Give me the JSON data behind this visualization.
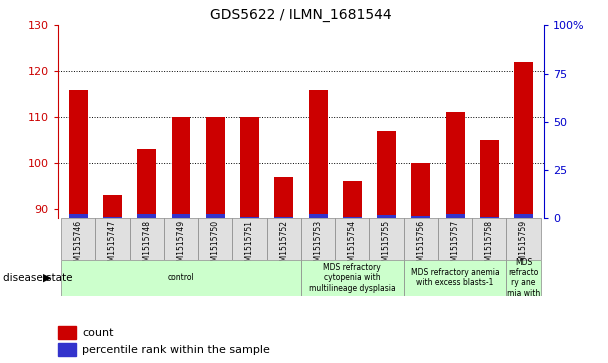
{
  "title": "GDS5622 / ILMN_1681544",
  "samples": [
    "GSM1515746",
    "GSM1515747",
    "GSM1515748",
    "GSM1515749",
    "GSM1515750",
    "GSM1515751",
    "GSM1515752",
    "GSM1515753",
    "GSM1515754",
    "GSM1515755",
    "GSM1515756",
    "GSM1515757",
    "GSM1515758",
    "GSM1515759"
  ],
  "count_values": [
    116,
    93,
    103,
    110,
    110,
    110,
    97,
    116,
    96,
    107,
    100,
    111,
    105,
    122
  ],
  "percentile_values": [
    5,
    1,
    5,
    5,
    5,
    1,
    1,
    5,
    1,
    4,
    2,
    5,
    1,
    5
  ],
  "ylim_left": [
    88,
    130
  ],
  "ylim_right": [
    0,
    100
  ],
  "yticks_left": [
    90,
    100,
    110,
    120,
    130
  ],
  "yticks_right": [
    0,
    25,
    50,
    75,
    100
  ],
  "ytick_labels_right": [
    "0",
    "25",
    "50",
    "75",
    "100%"
  ],
  "bar_color_count": "#cc0000",
  "bar_color_pct": "#3333cc",
  "bar_bottom": 88,
  "bar_width": 0.55,
  "groups": [
    {
      "label": "control",
      "start": 0,
      "end": 7,
      "color": "#ccffcc"
    },
    {
      "label": "MDS refractory\ncytopenia with\nmultilineage dysplasia",
      "start": 7,
      "end": 10,
      "color": "#ccffcc"
    },
    {
      "label": "MDS refractory anemia\nwith excess blasts-1",
      "start": 10,
      "end": 13,
      "color": "#ccffcc"
    },
    {
      "label": "MDS\nrefracto\nry ane\nmia with",
      "start": 13,
      "end": 14,
      "color": "#ccffcc"
    }
  ],
  "disease_state_label": "disease state",
  "legend_count_label": "count",
  "legend_pct_label": "percentile rank within the sample",
  "tick_color_left": "#cc0000",
  "tick_color_right": "#0000cc",
  "sample_box_color": "#e0e0e0",
  "grid_yticks": [
    100,
    110,
    120
  ],
  "pct_bar_scale": 0.4
}
